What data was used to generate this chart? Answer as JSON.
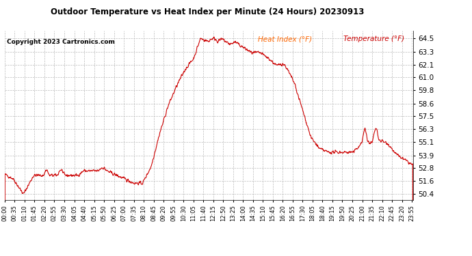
{
  "title": "Outdoor Temperature vs Heat Index per Minute (24 Hours) 20230913",
  "copyright_text": "Copyright 2023 Cartronics.com",
  "legend_heat_index": "Heat Index (°F)",
  "legend_temperature": "Temperature (°F)",
  "line_color": "#cc0000",
  "legend_heat_color": "#ff6600",
  "legend_temp_color": "#cc0000",
  "background_color": "#ffffff",
  "grid_color": "#bbbbbb",
  "title_color": "#000000",
  "copyright_color": "#000000",
  "yticks": [
    50.4,
    51.6,
    52.8,
    53.9,
    55.1,
    56.3,
    57.5,
    58.6,
    59.8,
    61.0,
    62.1,
    63.3,
    64.5
  ],
  "ymin": 49.9,
  "ymax": 65.2,
  "x_tick_interval": 35,
  "figwidth": 6.9,
  "figheight": 3.75,
  "dpi": 100
}
